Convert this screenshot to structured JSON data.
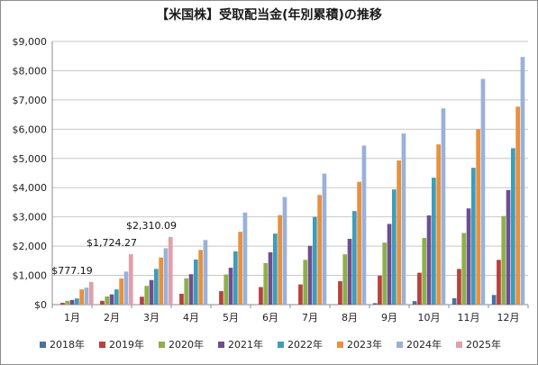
{
  "chart_data": {
    "type": "bar",
    "title": "【米国株】受取配当金(年別累積)の推移",
    "xlabel": "",
    "ylabel": "",
    "ylim": [
      0,
      9000
    ],
    "yticks": [
      "$0",
      "$1,000",
      "$2,000",
      "$3,000",
      "$4,000",
      "$5,000",
      "$6,000",
      "$7,000",
      "$8,000",
      "$9,000"
    ],
    "categories": [
      "1月",
      "2月",
      "3月",
      "4月",
      "5月",
      "6月",
      "7月",
      "8月",
      "9月",
      "10月",
      "11月",
      "12月"
    ],
    "grid": true,
    "legend": "bottom",
    "series": [
      {
        "name": "2018年",
        "color": "#4a6fa5",
        "values": [
          0,
          0,
          0,
          0,
          0,
          0,
          0,
          0,
          50,
          120,
          220,
          330
        ]
      },
      {
        "name": "2019年",
        "color": "#b8403d",
        "values": [
          60,
          130,
          270,
          370,
          460,
          600,
          690,
          800,
          990,
          1090,
          1220,
          1530
        ]
      },
      {
        "name": "2020年",
        "color": "#8db04a",
        "values": [
          130,
          280,
          640,
          900,
          1030,
          1420,
          1530,
          1720,
          2120,
          2280,
          2450,
          3030
        ]
      },
      {
        "name": "2021年",
        "color": "#6d4f8f",
        "values": [
          160,
          350,
          840,
          1040,
          1260,
          1790,
          2010,
          2250,
          2760,
          3050,
          3290,
          3920
        ]
      },
      {
        "name": "2022年",
        "color": "#3d9dbb",
        "values": [
          210,
          520,
          1220,
          1540,
          1820,
          2430,
          3000,
          3200,
          3940,
          4340,
          4680,
          5350
        ]
      },
      {
        "name": "2023年",
        "color": "#e8903c",
        "values": [
          520,
          890,
          1610,
          1870,
          2490,
          3060,
          3750,
          4200,
          4930,
          5480,
          6000,
          6770
        ]
      },
      {
        "name": "2024年",
        "color": "#9ab1d8",
        "values": [
          580,
          1130,
          1930,
          2210,
          3150,
          3680,
          4480,
          5440,
          5850,
          6710,
          7720,
          8470
        ]
      },
      {
        "name": "2025年",
        "color": "#e0a0a8",
        "values": [
          777.19,
          1724.27,
          2310.09,
          null,
          null,
          null,
          null,
          null,
          null,
          null,
          null,
          null
        ]
      }
    ],
    "annotations": [
      "$777.19",
      "$1,724.27",
      "$2,310.09"
    ]
  }
}
